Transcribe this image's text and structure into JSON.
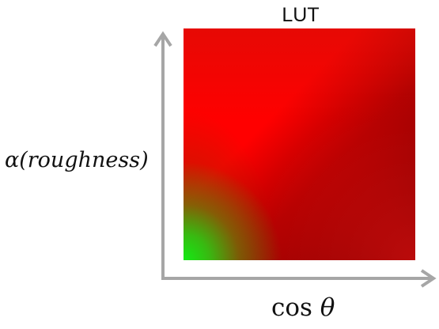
{
  "diagram": {
    "title": "LUT",
    "y_axis_label": "α(roughness)",
    "x_axis_label_prefix": "cos ",
    "x_axis_label_symbol": "θ",
    "colors": {
      "axis": "#a6a6a6",
      "lut_base": "#ff0000",
      "lut_corner_green": "#14eb14",
      "lut_corner_dark": "#3c0000"
    }
  }
}
